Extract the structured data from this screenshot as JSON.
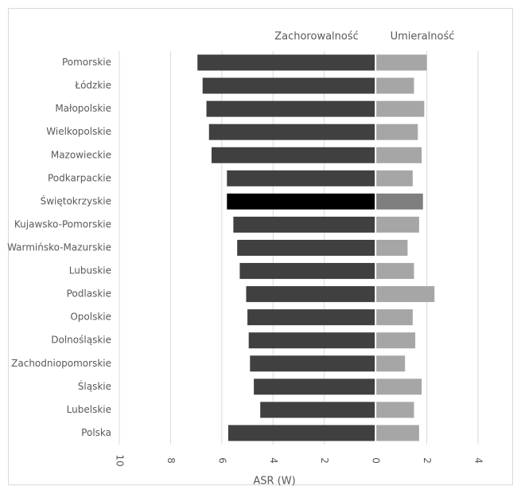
{
  "chart_data": {
    "type": "butterfly-bar",
    "categories": [
      "Pomorskie",
      "Łódzkie",
      "Małopolskie",
      "Wielkopolskie",
      "Mazowieckie",
      "Podkarpackie",
      "Świętokrzyskie",
      "Kujawsko-Pomorskie",
      "Warmińsko-Mazurskie",
      "Lubuskie",
      "Podlaskie",
      "Opolskie",
      "Dolnośląskie",
      "Zachodniopomorskie",
      "Śląskie",
      "Lubelskie",
      "Polska"
    ],
    "series": [
      {
        "name": "Zachorowalność",
        "color": "#404040",
        "colors": [
          "#404040",
          "#404040",
          "#404040",
          "#404040",
          "#404040",
          "#404040",
          "#000000",
          "#404040",
          "#404040",
          "#404040",
          "#404040",
          "#404040",
          "#404040",
          "#404040",
          "#404040",
          "#404040",
          "#404040"
        ],
        "values": [
          -6.95,
          -6.75,
          -6.6,
          -6.5,
          -6.4,
          -5.8,
          -5.8,
          -5.55,
          -5.4,
          -5.3,
          -5.05,
          -5.0,
          -4.95,
          -4.9,
          -4.75,
          -4.5,
          -5.75
        ]
      },
      {
        "name": "Umieralność",
        "color": "#a6a6a6",
        "colors": [
          "#a6a6a6",
          "#a6a6a6",
          "#a6a6a6",
          "#a6a6a6",
          "#a6a6a6",
          "#a6a6a6",
          "#7f7f7f",
          "#a6a6a6",
          "#a6a6a6",
          "#a6a6a6",
          "#a6a6a6",
          "#a6a6a6",
          "#a6a6a6",
          "#a6a6a6",
          "#a6a6a6",
          "#a6a6a6",
          "#a6a6a6"
        ],
        "values": [
          2.0,
          1.5,
          1.9,
          1.65,
          1.8,
          1.45,
          1.85,
          1.7,
          1.25,
          1.5,
          2.3,
          1.45,
          1.55,
          1.15,
          1.8,
          1.5,
          1.7
        ]
      }
    ],
    "x_label": "ASR (W)",
    "xlim": [
      -10,
      4
    ],
    "xticks": [
      {
        "value": -10,
        "label": "10"
      },
      {
        "value": -8,
        "label": "8"
      },
      {
        "value": -6,
        "label": "6"
      },
      {
        "value": -4,
        "label": "4"
      },
      {
        "value": -2,
        "label": "2"
      },
      0,
      2,
      4
    ],
    "grid": true
  }
}
